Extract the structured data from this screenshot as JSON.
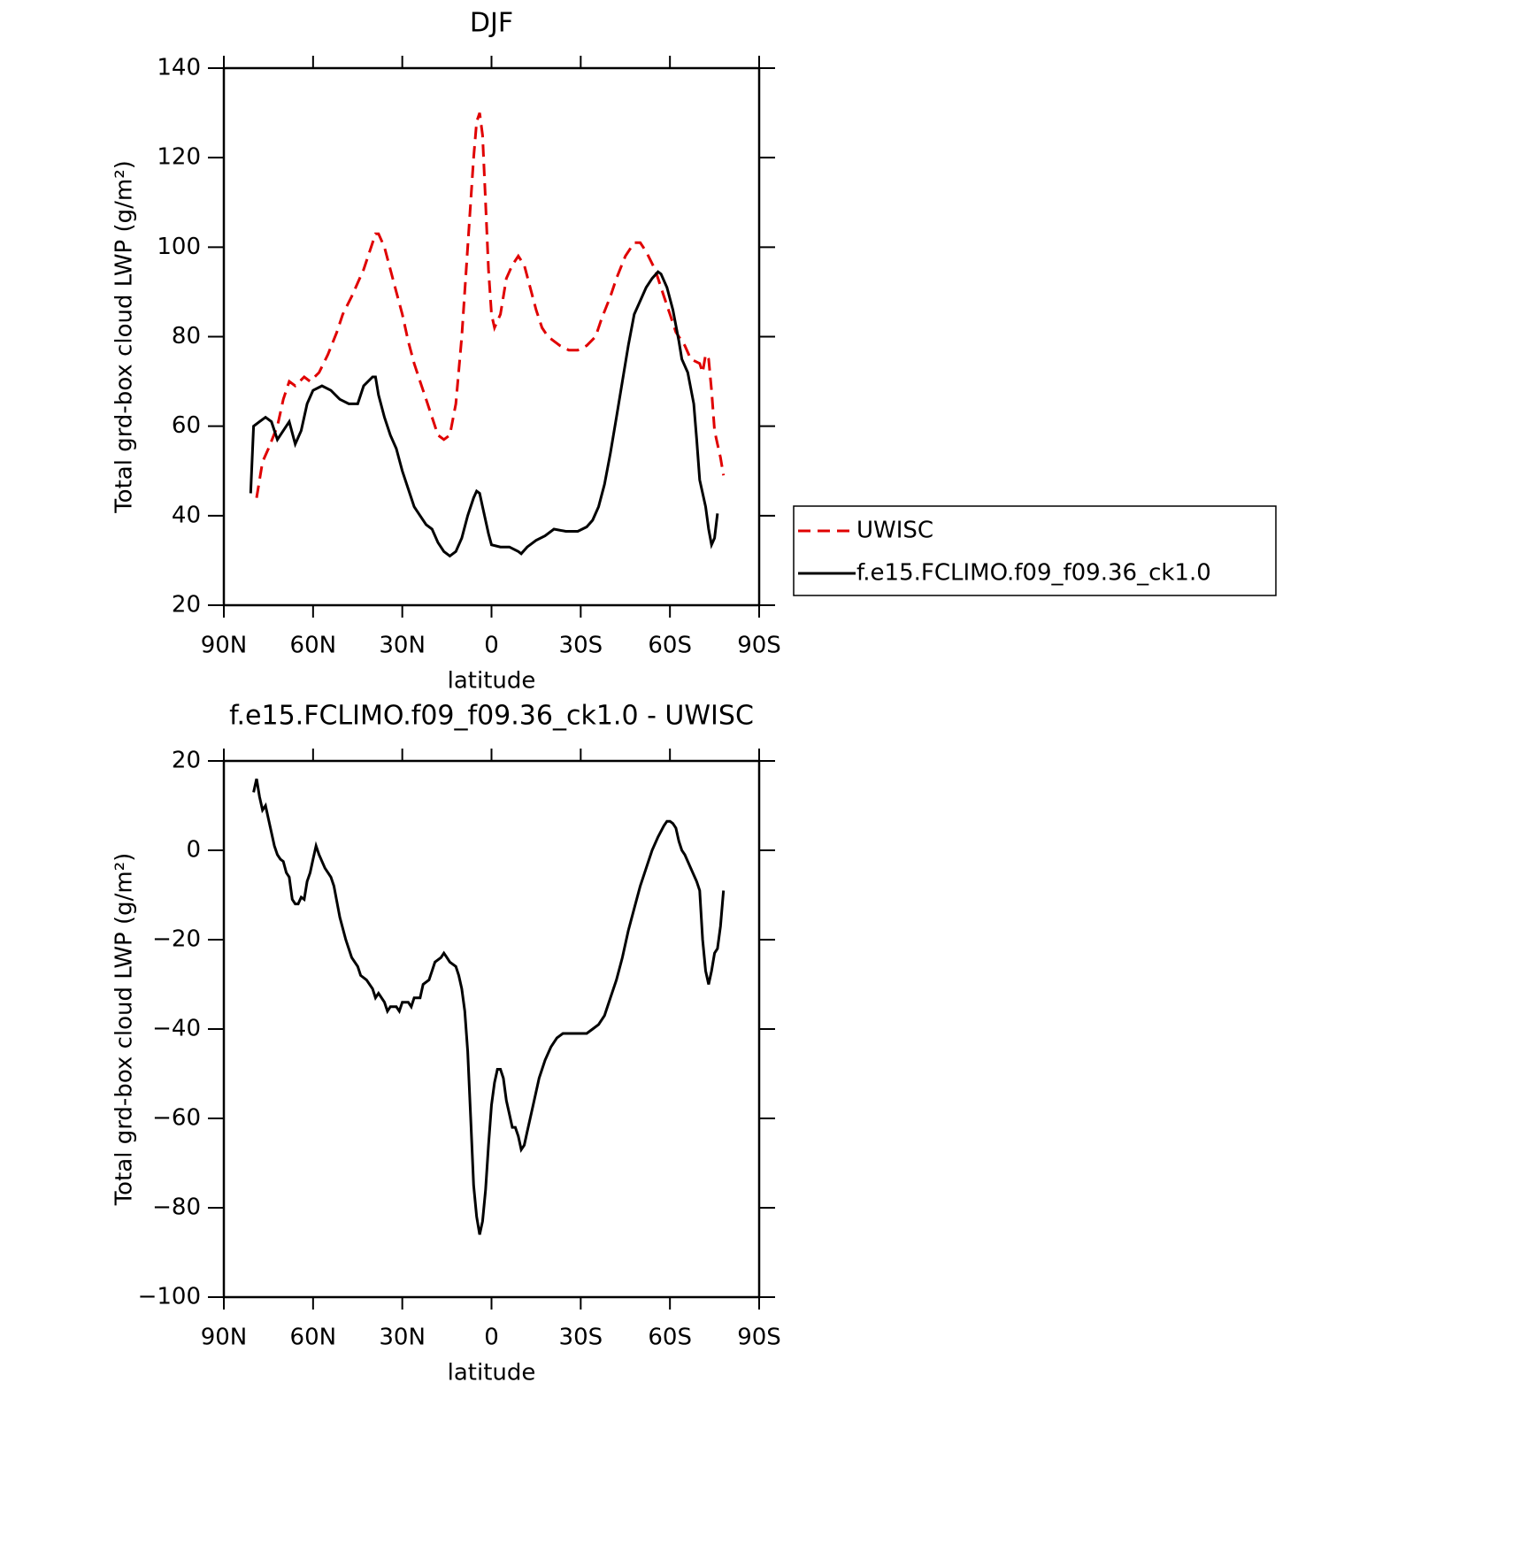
{
  "chart_data": [
    {
      "type": "line",
      "title": "DJF",
      "xlabel": "latitude",
      "ylabel": "Total grd-box cloud LWP (g/m²)",
      "xlim": [
        90,
        -90
      ],
      "ylim": [
        20,
        140
      ],
      "xticks": [
        {
          "value": 90,
          "label": "90N"
        },
        {
          "value": 60,
          "label": "60N"
        },
        {
          "value": 30,
          "label": "30N"
        },
        0,
        {
          "value": -30,
          "label": "30S"
        },
        {
          "value": -60,
          "label": "60S"
        },
        {
          "value": -90,
          "label": "90S"
        }
      ],
      "yticks": [
        20,
        40,
        60,
        80,
        100,
        120,
        140
      ],
      "series": [
        {
          "name": "UWISC",
          "color": "#e00000",
          "line_style": "dashed",
          "x": [
            79,
            77,
            75,
            72,
            70,
            68,
            66,
            63,
            61,
            58,
            55,
            52,
            50,
            47,
            43,
            40,
            39,
            38,
            36,
            34,
            32,
            30,
            28,
            26,
            24,
            22,
            20,
            18,
            16,
            14,
            12,
            10,
            8,
            6,
            5,
            4,
            3,
            2,
            1,
            0,
            -1,
            -3,
            -5,
            -7,
            -9,
            -11,
            -13,
            -15,
            -17,
            -19,
            -21,
            -23,
            -26,
            -29,
            -32,
            -35,
            -37,
            -40,
            -42,
            -45,
            -48,
            -50,
            -52,
            -55,
            -58,
            -60,
            -62,
            -65,
            -67,
            -70,
            -71,
            -72,
            -73,
            -74,
            -75,
            -76,
            -77,
            -78
          ],
          "values": [
            44,
            52,
            55,
            60,
            66,
            70,
            69,
            71,
            70,
            72,
            76,
            81,
            85,
            89,
            95,
            101,
            103,
            103,
            100,
            95,
            90,
            85,
            79,
            74,
            70,
            66,
            62,
            58,
            57,
            58,
            65,
            80,
            100,
            120,
            128,
            130,
            125,
            110,
            95,
            85,
            82,
            85,
            93,
            96,
            98,
            96,
            91,
            86,
            82,
            80,
            79,
            78,
            77,
            77,
            78,
            80,
            84,
            89,
            93,
            98,
            101,
            101,
            99,
            95,
            89,
            85,
            81,
            78,
            75,
            74,
            72,
            76,
            75,
            68,
            59,
            56,
            53,
            49
          ]
        },
        {
          "name": "f.e15.FCLIMO.f09_f09.36_ck1.0",
          "color": "#000000",
          "line_style": "solid",
          "x": [
            81,
            80,
            78,
            76,
            74,
            72,
            70,
            68,
            66,
            64,
            62,
            60,
            57,
            54,
            51,
            48,
            45,
            43,
            40,
            39,
            38,
            36,
            34,
            32,
            30,
            28,
            26,
            24,
            22,
            20,
            18,
            16,
            14,
            12,
            10,
            8,
            6,
            5,
            4,
            3,
            1,
            0,
            -3,
            -6,
            -9,
            -10,
            -12,
            -15,
            -18,
            -21,
            -25,
            -29,
            -32,
            -34,
            -36,
            -38,
            -40,
            -42,
            -44,
            -46,
            -48,
            -50,
            -52,
            -54,
            -56,
            -57,
            -59,
            -61,
            -63,
            -64,
            -66,
            -68,
            -69,
            -70,
            -72,
            -73,
            -74,
            -75,
            -76
          ],
          "values": [
            45,
            60,
            61,
            62,
            61,
            57,
            59,
            61,
            56,
            59,
            65,
            68,
            69,
            68,
            66,
            65,
            65,
            69,
            71,
            71,
            67,
            62,
            58,
            55,
            50,
            46,
            42,
            40,
            38,
            37,
            34,
            32,
            31,
            32,
            35,
            40,
            44,
            45.5,
            45,
            42,
            36,
            33.5,
            33,
            33,
            32,
            31.5,
            33,
            34.5,
            35.5,
            37,
            36.5,
            36.5,
            37.5,
            39,
            42,
            47,
            54,
            62,
            70,
            78,
            85,
            88,
            91,
            93,
            94.5,
            94,
            91,
            86,
            79,
            75,
            72,
            65,
            57,
            48,
            42,
            37,
            33.5,
            35,
            40.5
          ]
        }
      ],
      "legend": "right"
    },
    {
      "type": "line",
      "title": "f.e15.FCLIMO.f09_f09.36_ck1.0 - UWISC",
      "xlabel": "latitude",
      "ylabel": "Total grd-box cloud LWP (g/m²)",
      "xlim": [
        90,
        -90
      ],
      "ylim": [
        -100,
        20
      ],
      "xticks": [
        {
          "value": 90,
          "label": "90N"
        },
        {
          "value": 60,
          "label": "60N"
        },
        {
          "value": 30,
          "label": "30N"
        },
        0,
        {
          "value": -30,
          "label": "30S"
        },
        {
          "value": -60,
          "label": "60S"
        },
        {
          "value": -90,
          "label": "90S"
        }
      ],
      "yticks": [
        {
          "value": -100,
          "label": "−100"
        },
        {
          "value": -80,
          "label": "−80"
        },
        {
          "value": -60,
          "label": "−60"
        },
        {
          "value": -40,
          "label": "−40"
        },
        {
          "value": -20,
          "label": "−20"
        },
        0,
        20
      ],
      "series": [
        {
          "color": "#000000",
          "line_style": "solid",
          "x": [
            80,
            79,
            78,
            77,
            76,
            75,
            73,
            72,
            71,
            70,
            69,
            68,
            67,
            66,
            65,
            64,
            63,
            62,
            61,
            60,
            59,
            58,
            56,
            54,
            53,
            51,
            49,
            47,
            45,
            44,
            42,
            40,
            39,
            38,
            36,
            35,
            34,
            32,
            31,
            30,
            28,
            27,
            26,
            24,
            23,
            21,
            20,
            19,
            17,
            16,
            15,
            14,
            12,
            11,
            10,
            9,
            8,
            7,
            6,
            5,
            4,
            3,
            2,
            1,
            0,
            -1,
            -2,
            -3,
            -4,
            -5,
            -6,
            -7,
            -8,
            -9,
            -10,
            -11,
            -12,
            -14,
            -16,
            -18,
            -20,
            -22,
            -24,
            -27,
            -30,
            -32,
            -34,
            -36,
            -38,
            -40,
            -42,
            -44,
            -46,
            -48,
            -50,
            -52,
            -54,
            -56,
            -58,
            -59,
            -60,
            -61,
            -62,
            -63,
            -64,
            -65,
            -67,
            -69,
            -70,
            -71,
            -72,
            -73,
            -74,
            -75,
            -76,
            -77,
            -78
          ],
          "values": [
            13,
            16,
            12,
            9,
            10,
            7,
            1,
            -1,
            -2,
            -2.5,
            -5,
            -6,
            -11,
            -12,
            -12,
            -10.5,
            -11,
            -7,
            -5,
            -2,
            1,
            -1,
            -4,
            -6,
            -8,
            -15,
            -20,
            -24,
            -26,
            -28,
            -29,
            -31,
            -33,
            -32,
            -34,
            -36,
            -35,
            -35,
            -36,
            -34,
            -34,
            -35,
            -33,
            -33,
            -30,
            -29,
            -27,
            -25,
            -24,
            -23,
            -24,
            -25,
            -26,
            -28,
            -31,
            -36,
            -45,
            -60,
            -75,
            -82,
            -86,
            -83,
            -76,
            -66,
            -57,
            -52,
            -49,
            -49,
            -51,
            -56,
            -59,
            -62,
            -62,
            -64,
            -67,
            -66,
            -63,
            -57,
            -51,
            -47,
            -44,
            -42,
            -41,
            -41,
            -41,
            -41,
            -40,
            -39,
            -37,
            -33,
            -29,
            -24,
            -18,
            -13,
            -8,
            -4,
            0,
            3,
            5.5,
            6.5,
            6.5,
            6,
            5,
            2,
            0,
            -1,
            -4,
            -7,
            -9,
            -20,
            -27,
            -30,
            -27,
            -23,
            -22,
            -17,
            -9
          ]
        }
      ]
    }
  ]
}
